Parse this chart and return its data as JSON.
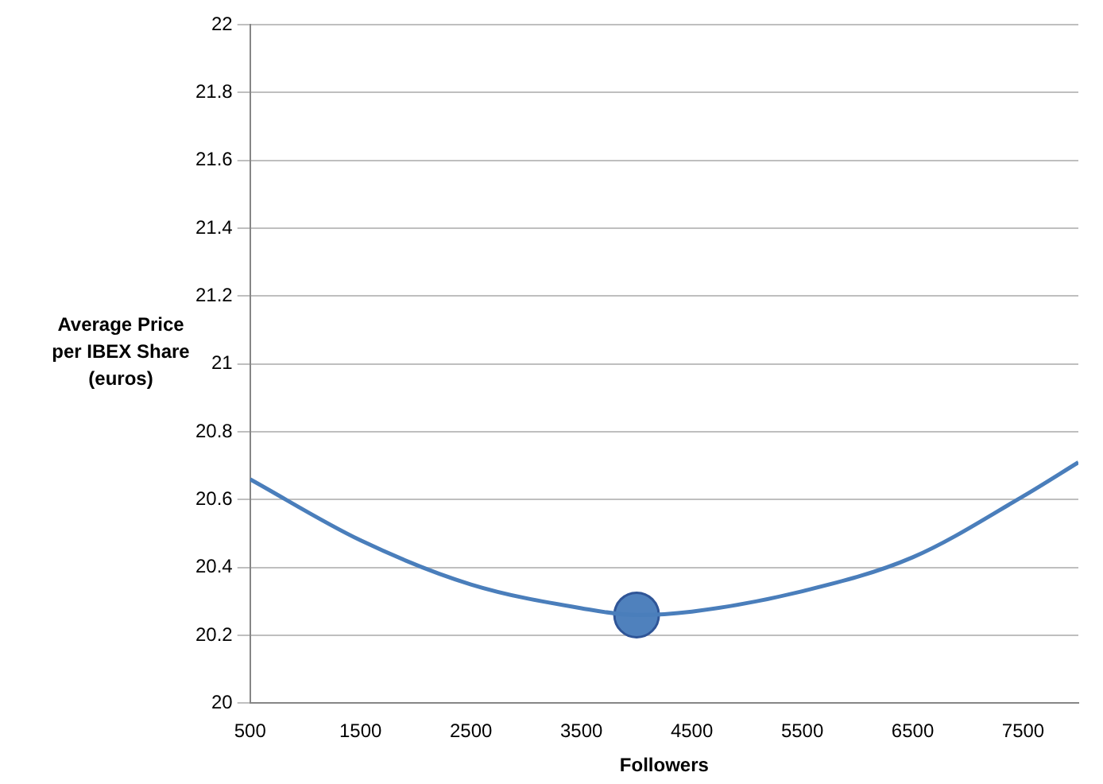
{
  "chart_data": {
    "type": "line",
    "xlabel": "Followers",
    "ylabel": "Average Price per IBEX Share (euros)",
    "x": [
      500,
      1500,
      2500,
      3500,
      4000,
      4500,
      5500,
      6500,
      7500,
      8000
    ],
    "series": [
      {
        "color": "#4a7ebb",
        "values": [
          20.66,
          20.48,
          20.35,
          20.28,
          20.26,
          20.27,
          20.33,
          20.43,
          20.61,
          20.71
        ],
        "marker": "none"
      },
      {
        "type": "scatter",
        "color": "#4f81bd",
        "x": [
          4000
        ],
        "values": [
          20.26
        ],
        "marker": "circle"
      }
    ],
    "xlim": [
      500,
      8000
    ],
    "xticks": [
      500,
      1500,
      2500,
      3500,
      4500,
      5500,
      6500,
      7500
    ],
    "ylim": [
      20,
      22
    ],
    "yticks": [
      20,
      20.2,
      20.4,
      20.6,
      20.8,
      21,
      21.2,
      21.4,
      21.6,
      21.8,
      22
    ],
    "grid": "y",
    "legend": false
  }
}
